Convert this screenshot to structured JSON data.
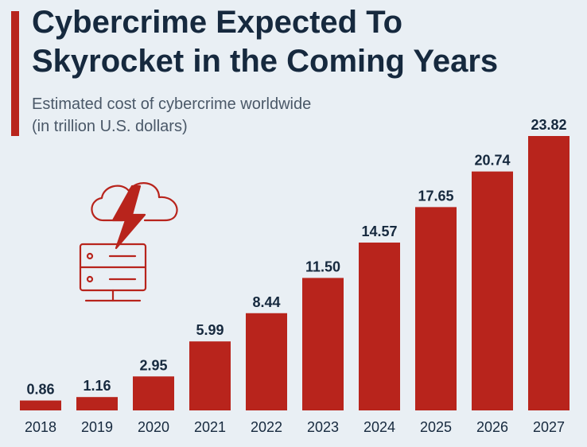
{
  "header": {
    "title_line1": "Cybercrime Expected To",
    "title_line2": "Skyrocket in the Coming Years",
    "subtitle_line1": "Estimated cost of cybercrime worldwide",
    "subtitle_line2": "(in trillion U.S. dollars)"
  },
  "colors": {
    "bar": "#b8241c",
    "text": "#16293e",
    "background": "#e9eff4"
  },
  "icon": "cloud-server-lightning-icon",
  "chart_data": {
    "type": "bar",
    "title": "Cybercrime Expected To Skyrocket in the Coming Years",
    "subtitle": "Estimated cost of cybercrime worldwide (in trillion U.S. dollars)",
    "categories": [
      "2018",
      "2019",
      "2020",
      "2021",
      "2022",
      "2023",
      "2024",
      "2025",
      "2026",
      "2027"
    ],
    "values": [
      0.86,
      1.16,
      2.95,
      5.99,
      8.44,
      11.5,
      14.57,
      17.65,
      20.74,
      23.82
    ],
    "labels": [
      "0.86",
      "1.16",
      "2.95",
      "5.99",
      "8.44",
      "11.50",
      "14.57",
      "17.65",
      "20.74",
      "23.82"
    ],
    "xlabel": "",
    "ylabel": "",
    "ylim": [
      0,
      23.82
    ],
    "grid": false,
    "legend": "none"
  }
}
